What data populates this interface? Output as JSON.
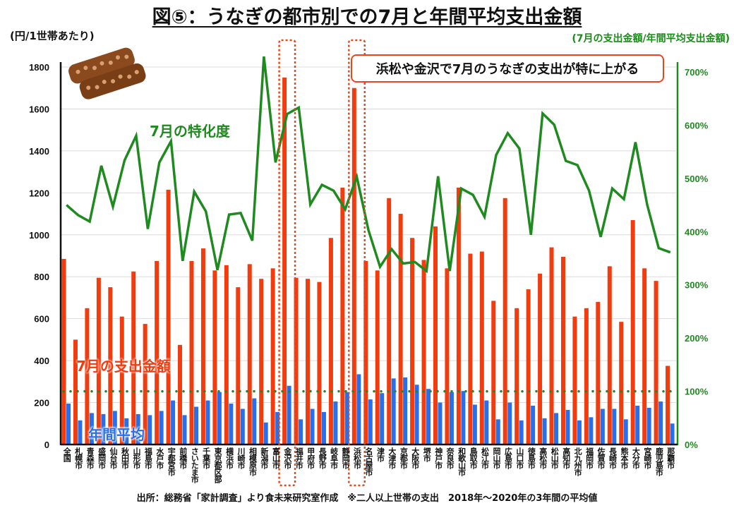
{
  "title": "図⑤：うなぎの都市別での7月と年間平均支出金額",
  "callout": "浜松や金沢で7月のうなぎの支出が特に上がる",
  "source": "出所：総務省「家計調査」より食未来研究室作成　※二人以上世帯の支出　2018年～2020年の3年間の平均値",
  "colors": {
    "july": "#f03c0f",
    "annual": "#2a6ee8",
    "ratio": "#1f8a1f",
    "highlight": "#e8471c"
  },
  "chart_data": {
    "type": "bar+line",
    "title": "図⑤：うなぎの都市別での7月と年間平均支出金額",
    "ylabel": "(円/1世帯あたり)",
    "y2label": "(7月の支出金額/年間平均支出金額)",
    "ylim": [
      0,
      1800
    ],
    "y2lim": [
      0,
      700
    ],
    "yticks": [
      "0",
      "200",
      "400",
      "600",
      "800",
      "1000",
      "1200",
      "1400",
      "1600",
      "1800"
    ],
    "y2ticks": [
      "0%",
      "100%",
      "200%",
      "300%",
      "400%",
      "500%",
      "600%",
      "700%"
    ],
    "grid": true,
    "categories": [
      "全国",
      "札幌市",
      "青森市",
      "盛岡市",
      "仙台市",
      "秋田市",
      "山形市",
      "福島市",
      "水戸市",
      "宇都宮市",
      "前橋市",
      "さいたま市",
      "千葉市",
      "東京都区部",
      "横浜市",
      "川崎市",
      "相模原市",
      "新潟市",
      "富山市",
      "金沢市",
      "福井市",
      "甲府市",
      "長野市",
      "岐阜市",
      "静岡市",
      "浜松市",
      "名古屋市",
      "津市",
      "大津市",
      "京都市",
      "大阪市",
      "堺市",
      "神戸市",
      "奈良市",
      "和歌山市",
      "鳥取市",
      "松江市",
      "岡山市",
      "広島市",
      "山口市",
      "徳島市",
      "高松市",
      "松山市",
      "高知市",
      "北九州市",
      "福岡市",
      "佐賀市",
      "長崎市",
      "熊本市",
      "大分市",
      "宮崎市",
      "鹿児島市",
      "那覇市"
    ],
    "highlighted": [
      "金沢市",
      "浜松市"
    ],
    "series": [
      {
        "name": "7月の支出金額",
        "type": "bar",
        "axis": "left",
        "values": [
          885,
          500,
          650,
          795,
          750,
          610,
          825,
          575,
          875,
          1215,
          475,
          875,
          935,
          830,
          855,
          750,
          860,
          790,
          840,
          1750,
          795,
          790,
          775,
          985,
          1225,
          1700,
          875,
          830,
          1175,
          1100,
          985,
          880,
          1040,
          840,
          1225,
          910,
          920,
          685,
          1175,
          650,
          740,
          815,
          940,
          895,
          610,
          650,
          680,
          850,
          585,
          1070,
          840,
          780,
          375
        ]
      },
      {
        "name": "年間平均",
        "type": "bar",
        "axis": "left",
        "values": [
          195,
          115,
          150,
          145,
          160,
          125,
          145,
          140,
          160,
          210,
          140,
          180,
          210,
          250,
          195,
          170,
          220,
          105,
          155,
          280,
          120,
          170,
          155,
          205,
          250,
          335,
          215,
          245,
          315,
          320,
          285,
          265,
          200,
          250,
          255,
          190,
          210,
          120,
          200,
          115,
          185,
          125,
          150,
          165,
          115,
          130,
          170,
          170,
          120,
          185,
          175,
          205,
          100
        ]
      },
      {
        "name": "7月の特化度",
        "type": "line",
        "axis": "right",
        "unit": "%",
        "values": [
          450,
          431,
          419,
          524,
          447,
          534,
          580,
          405,
          530,
          570,
          345,
          475,
          438,
          328,
          432,
          435,
          383,
          729,
          530,
          621,
          633,
          451,
          488,
          477,
          442,
          503,
          403,
          334,
          367,
          340,
          343,
          326,
          504,
          326,
          481,
          469,
          428,
          544,
          585,
          556,
          394,
          622,
          601,
          533,
          525,
          477,
          390,
          481,
          461,
          568,
          451,
          369,
          361
        ]
      },
      {
        "name": "100%基準",
        "type": "reference",
        "axis": "right",
        "value": 100
      }
    ],
    "annotations": [
      "7月の特化度",
      "7月の支出金額",
      "年間平均"
    ]
  }
}
